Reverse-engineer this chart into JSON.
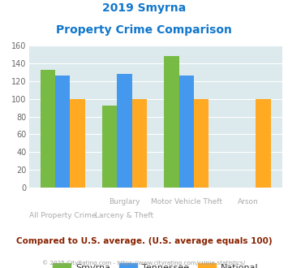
{
  "title_line1": "2019 Smyrna",
  "title_line2": "Property Crime Comparison",
  "smyrna": [
    133,
    92,
    148,
    null
  ],
  "tennessee": [
    126,
    128,
    126,
    null
  ],
  "national": [
    100,
    100,
    100,
    100
  ],
  "smyrna_color": "#77bb44",
  "tennessee_color": "#4499ee",
  "national_color": "#ffaa22",
  "bg_color": "#dce9ed",
  "title_color": "#1177cc",
  "annotation": "Compared to U.S. average. (U.S. average equals 100)",
  "annotation_color": "#882200",
  "footer": "© 2025 CityRating.com - https://www.cityrating.com/crime-statistics/",
  "footer_color": "#999999",
  "xticklabels_row1": [
    "",
    "Burglary",
    "Motor Vehicle Theft",
    "Arson"
  ],
  "xticklabels_row2": [
    "All Property Crime",
    "Larceny & Theft",
    "",
    ""
  ],
  "ylim": [
    0,
    160
  ],
  "yticks": [
    0,
    20,
    40,
    60,
    80,
    100,
    120,
    140,
    160
  ],
  "legend_labels": [
    "Smyrna",
    "Tennessee",
    "National"
  ]
}
